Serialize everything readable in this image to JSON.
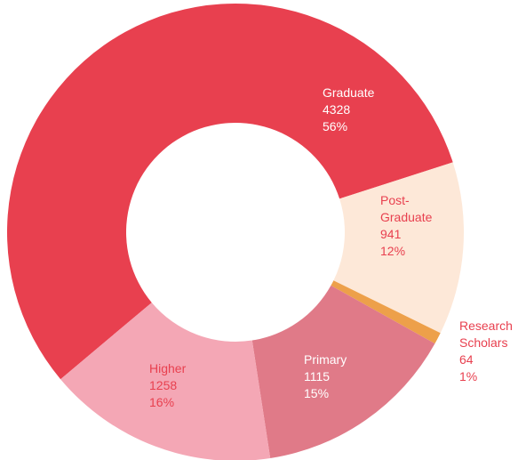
{
  "chart_data": {
    "type": "pie",
    "donut": true,
    "categories": [
      "Graduate",
      "Post-Graduate",
      "Research Scholars",
      "Primary",
      "Higher"
    ],
    "values": [
      4328,
      941,
      64,
      1115,
      1258
    ],
    "percentage_labels": [
      "56%",
      "12%",
      "1%",
      "15%",
      "16%"
    ],
    "colors": [
      "#e8404f",
      "#fde8d8",
      "#eda04a",
      "#e07a88",
      "#f4a7b5"
    ],
    "label_colors": [
      "#ffffff",
      "#e8404f",
      "#e8404f",
      "#ffffff",
      "#e8404f"
    ]
  }
}
